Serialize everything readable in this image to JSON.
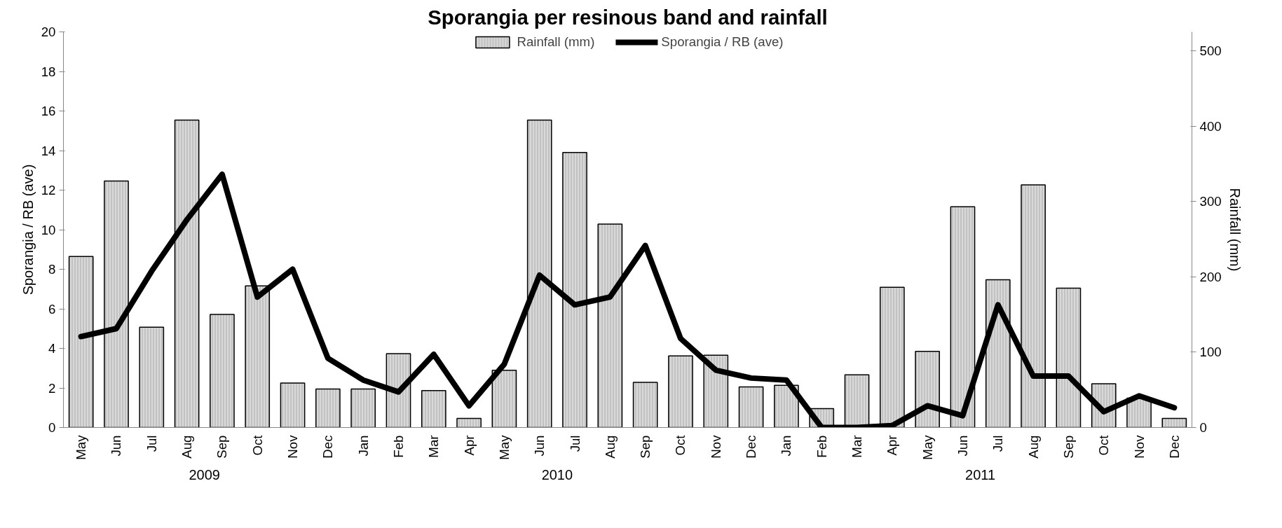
{
  "chart_data": {
    "type": "bar",
    "title": "Sporangia per resinous band and rainfall",
    "ylabel": "Sporangia / RB (ave)",
    "y2label": "Rainfall (mm)",
    "categories": [
      "May",
      "Jun",
      "Jul",
      "Aug",
      "Sep",
      "Oct",
      "Nov",
      "Dec",
      "Jan",
      "Feb",
      "Mar",
      "Apr",
      "May",
      "Jun",
      "Jul",
      "Aug",
      "Sep",
      "Oct",
      "Nov",
      "Dec",
      "Jan",
      "Feb",
      "Mar",
      "Apr",
      "May",
      "Jun",
      "Jul",
      "Aug",
      "Sep",
      "Oct",
      "Nov",
      "Dec"
    ],
    "series": [
      {
        "name": "Rainfall (mm)",
        "axis": "y2",
        "color": "#d9d9d9",
        "values": [
          227,
          327,
          133,
          408,
          150,
          188,
          59,
          51,
          51,
          98,
          49,
          12,
          76,
          408,
          365,
          270,
          60,
          95,
          96,
          54,
          56,
          25,
          70,
          186,
          101,
          293,
          196,
          322,
          185,
          58,
          39,
          12
        ]
      },
      {
        "name": "Sporangia / RB (ave)",
        "type": "line",
        "color": "#000000",
        "values": [
          4.6,
          5.0,
          7.9,
          10.5,
          12.8,
          6.6,
          8.0,
          3.5,
          2.4,
          1.8,
          3.7,
          1.1,
          3.2,
          7.7,
          6.2,
          6.6,
          9.2,
          4.5,
          2.9,
          2.5,
          2.4,
          0.0,
          0.0,
          0.1,
          1.1,
          0.6,
          6.2,
          2.6,
          2.6,
          0.8,
          1.6,
          1.0
        ]
      }
    ],
    "ylim": [
      0,
      20
    ],
    "yticks": [
      0,
      2,
      4,
      6,
      8,
      10,
      12,
      14,
      16,
      18,
      20
    ],
    "y2lim": [
      0,
      525
    ],
    "y2ticks": [
      0,
      100,
      200,
      300,
      400,
      500
    ],
    "annotations": [
      "2009",
      "2010",
      "2011"
    ],
    "grid": false,
    "legend": "top",
    "marker": "none",
    "line_style": "solid"
  }
}
